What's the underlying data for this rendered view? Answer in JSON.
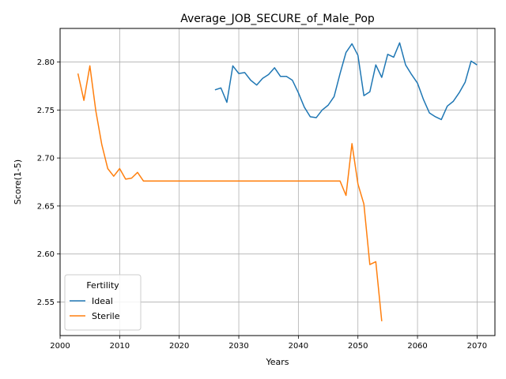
{
  "chart_data": {
    "type": "line",
    "title": "Average_JOB_SECURE_of_Male_Pop",
    "xlabel": "Years",
    "ylabel": "Score(1-5)",
    "xlim": [
      2000,
      2073
    ],
    "ylim": [
      2.515,
      2.835
    ],
    "xticks": [
      2000,
      2010,
      2020,
      2030,
      2040,
      2050,
      2060,
      2070
    ],
    "yticks": [
      2.55,
      2.6,
      2.65,
      2.7,
      2.75,
      2.8
    ],
    "ytick_labels": [
      "2.55",
      "2.60",
      "2.65",
      "2.70",
      "2.75",
      "2.80"
    ],
    "grid": true,
    "legend": {
      "title": "Fertility",
      "placement": "lower-left"
    },
    "series": [
      {
        "name": "Ideal",
        "color": "#1f77b4",
        "x": [
          2026,
          2027,
          2028,
          2029,
          2030,
          2031,
          2032,
          2033,
          2034,
          2035,
          2036,
          2037,
          2038,
          2039,
          2040,
          2041,
          2042,
          2043,
          2044,
          2045,
          2046,
          2047,
          2048,
          2049,
          2050,
          2051,
          2052,
          2053,
          2054,
          2055,
          2056,
          2057,
          2058,
          2059,
          2060,
          2061,
          2062,
          2063,
          2064,
          2065,
          2066,
          2067,
          2068,
          2069,
          2070
        ],
        "values": [
          2.771,
          2.773,
          2.758,
          2.796,
          2.788,
          2.789,
          2.781,
          2.776,
          2.783,
          2.787,
          2.794,
          2.785,
          2.785,
          2.781,
          2.768,
          2.753,
          2.743,
          2.742,
          2.75,
          2.755,
          2.764,
          2.788,
          2.81,
          2.819,
          2.807,
          2.765,
          2.769,
          2.797,
          2.784,
          2.808,
          2.805,
          2.82,
          2.797,
          2.787,
          2.778,
          2.761,
          2.747,
          2.743,
          2.74,
          2.754,
          2.759,
          2.768,
          2.779,
          2.801,
          2.797
        ]
      },
      {
        "name": "Sterile",
        "color": "#ff7f0e",
        "x": [
          2003,
          2004,
          2005,
          2006,
          2007,
          2008,
          2009,
          2010,
          2011,
          2012,
          2013,
          2014,
          2015,
          2020,
          2025,
          2030,
          2035,
          2040,
          2045,
          2047,
          2048,
          2049,
          2050,
          2051,
          2052,
          2053,
          2054
        ],
        "values": [
          2.788,
          2.76,
          2.796,
          2.749,
          2.714,
          2.689,
          2.681,
          2.689,
          2.678,
          2.679,
          2.685,
          2.676,
          2.676,
          2.676,
          2.676,
          2.676,
          2.676,
          2.676,
          2.676,
          2.676,
          2.661,
          2.715,
          2.673,
          2.652,
          2.589,
          2.592,
          2.53
        ]
      }
    ]
  }
}
